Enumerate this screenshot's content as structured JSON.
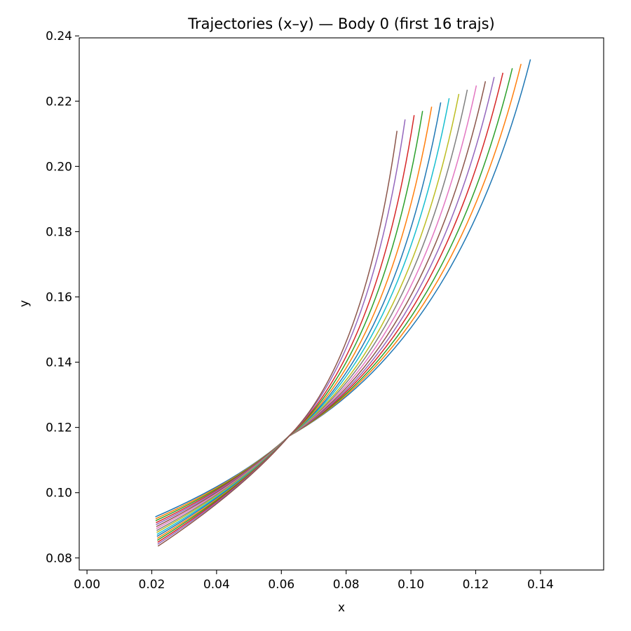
{
  "chart_data": {
    "type": "line",
    "title": "Trajectories (x–y) — Body 0 (first 16 trajs)",
    "xlabel": "x",
    "ylabel": "y",
    "xlim": [
      -0.0024,
      0.1595
    ],
    "ylim": [
      0.0763,
      0.2394
    ],
    "xticks": [
      0.0,
      0.02,
      0.04,
      0.06,
      0.08,
      0.1,
      0.12,
      0.14
    ],
    "xtick_labels": [
      "0.00",
      "0.02",
      "0.04",
      "0.06",
      "0.08",
      "0.10",
      "0.12",
      "0.14"
    ],
    "yticks": [
      0.08,
      0.1,
      0.12,
      0.14,
      0.16,
      0.18,
      0.2,
      0.22,
      0.24
    ],
    "ytick_labels": [
      "0.08",
      "0.10",
      "0.12",
      "0.14",
      "0.16",
      "0.18",
      "0.20",
      "0.22",
      "0.24"
    ],
    "grid": false,
    "legend": "none",
    "crossing_point": {
      "x": 0.0623,
      "y": 0.1173
    },
    "series": [
      {
        "color": "#1f77b4",
        "start": {
          "x": 0.0211,
          "y": 0.0926
        },
        "end": {
          "x": 0.1369,
          "y": 0.2328
        }
      },
      {
        "color": "#ff7f0e",
        "start": {
          "x": 0.0212,
          "y": 0.092
        },
        "end": {
          "x": 0.134,
          "y": 0.2314
        }
      },
      {
        "color": "#2ca02c",
        "start": {
          "x": 0.0212,
          "y": 0.0914
        },
        "end": {
          "x": 0.1313,
          "y": 0.2301
        }
      },
      {
        "color": "#d62728",
        "start": {
          "x": 0.0213,
          "y": 0.0908
        },
        "end": {
          "x": 0.1284,
          "y": 0.2287
        }
      },
      {
        "color": "#9467bd",
        "start": {
          "x": 0.0213,
          "y": 0.0902
        },
        "end": {
          "x": 0.1257,
          "y": 0.2274
        }
      },
      {
        "color": "#8c564b",
        "start": {
          "x": 0.0214,
          "y": 0.0896
        },
        "end": {
          "x": 0.123,
          "y": 0.2261
        }
      },
      {
        "color": "#e377c2",
        "start": {
          "x": 0.0214,
          "y": 0.089
        },
        "end": {
          "x": 0.1202,
          "y": 0.2248
        }
      },
      {
        "color": "#7f7f7f",
        "start": {
          "x": 0.0215,
          "y": 0.0884
        },
        "end": {
          "x": 0.1174,
          "y": 0.2235
        }
      },
      {
        "color": "#bcbd22",
        "start": {
          "x": 0.0215,
          "y": 0.0878
        },
        "end": {
          "x": 0.1148,
          "y": 0.2222
        }
      },
      {
        "color": "#17becf",
        "start": {
          "x": 0.0216,
          "y": 0.0872
        },
        "end": {
          "x": 0.1118,
          "y": 0.2209
        }
      },
      {
        "color": "#1f77b4",
        "start": {
          "x": 0.0216,
          "y": 0.0866
        },
        "end": {
          "x": 0.1092,
          "y": 0.2196
        }
      },
      {
        "color": "#ff7f0e",
        "start": {
          "x": 0.0217,
          "y": 0.086
        },
        "end": {
          "x": 0.1064,
          "y": 0.2183
        }
      },
      {
        "color": "#2ca02c",
        "start": {
          "x": 0.0217,
          "y": 0.0854
        },
        "end": {
          "x": 0.1036,
          "y": 0.217
        }
      },
      {
        "color": "#d62728",
        "start": {
          "x": 0.0218,
          "y": 0.0848
        },
        "end": {
          "x": 0.101,
          "y": 0.2157
        }
      },
      {
        "color": "#9467bd",
        "start": {
          "x": 0.0218,
          "y": 0.0842
        },
        "end": {
          "x": 0.0982,
          "y": 0.2144
        }
      },
      {
        "color": "#8c564b",
        "start": {
          "x": 0.0219,
          "y": 0.0836
        },
        "end": {
          "x": 0.0957,
          "y": 0.2109
        }
      }
    ]
  }
}
